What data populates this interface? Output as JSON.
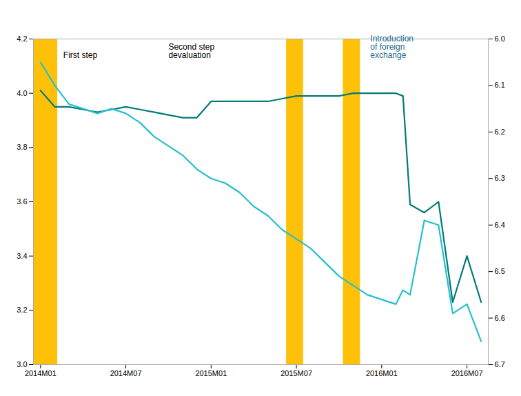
{
  "chart_data": {
    "type": "line",
    "x": [
      0,
      1,
      2,
      3,
      4,
      5,
      6,
      7,
      8,
      9,
      10,
      11,
      12,
      13,
      14,
      15,
      16,
      17,
      18,
      19,
      20,
      21,
      22,
      23,
      24,
      25,
      25.5,
      26,
      27,
      28,
      29,
      30,
      31
    ],
    "xlim": [
      -0.5,
      31.5
    ],
    "xticks": [
      {
        "value": 0,
        "label": "2014M01"
      },
      {
        "value": 6,
        "label": "2014M07"
      },
      {
        "value": 12,
        "label": "2015M01"
      },
      {
        "value": 18,
        "label": "2015M07"
      },
      {
        "value": 24,
        "label": "2016M01"
      },
      {
        "value": 30,
        "label": "2016M07"
      }
    ],
    "ylim": [
      3.0,
      4.2
    ],
    "yticks": [
      {
        "value": 3.0,
        "label": "3.0"
      },
      3.2,
      3.4,
      3.6,
      3.8,
      {
        "value": 4.0,
        "label": "4.0"
      },
      4.2
    ],
    "y2lim": [
      6.7,
      6.0
    ],
    "y2ticks": [
      {
        "value": 6.0,
        "label": "6.0"
      },
      6.1,
      6.2,
      6.3,
      6.4,
      6.5,
      6.6,
      6.7
    ],
    "grid": false,
    "series": [
      {
        "color": "#007b77",
        "values": [
          4.01,
          3.95,
          3.95,
          3.94,
          3.93,
          3.94,
          3.95,
          3.94,
          3.93,
          3.92,
          3.91,
          3.91,
          3.97,
          3.97,
          3.97,
          3.97,
          3.97,
          3.98,
          3.99,
          3.99,
          3.99,
          3.99,
          4.0,
          4.0,
          4.0,
          4.0,
          3.99,
          3.59,
          3.56,
          3.6,
          3.23,
          3.4,
          3.23
        ]
      },
      {
        "color": "#26bfcc",
        "axis": "y2",
        "values": [
          6.05,
          6.1,
          6.14,
          6.15,
          6.16,
          6.15,
          6.16,
          6.18,
          6.21,
          6.23,
          6.25,
          6.28,
          6.3,
          6.31,
          6.33,
          6.36,
          6.38,
          6.41,
          6.43,
          6.45,
          6.48,
          6.51,
          6.53,
          6.55,
          6.56,
          6.57,
          6.54,
          6.55,
          6.39,
          6.4,
          6.59,
          6.57,
          6.65
        ]
      }
    ],
    "bands": [
      {
        "x1": -0.5,
        "x2": 1.2,
        "color": "#FFC107"
      },
      {
        "x1": 17.3,
        "x2": 18.5,
        "color": "#FFC107"
      },
      {
        "x1": 21.3,
        "x2": 22.5,
        "color": "#FFC107"
      }
    ],
    "annotations": [
      {
        "text": "First step",
        "x": 1.6,
        "y": 4.13,
        "color": "#000000"
      },
      {
        "text": "Second step\ndevaluation",
        "x": 9.0,
        "y": 4.13,
        "color": "#000000"
      },
      {
        "text": "Introduction\nof foreign\nexchange",
        "x": 23.2,
        "y": 4.13,
        "color": "#1a6b8a"
      }
    ]
  }
}
